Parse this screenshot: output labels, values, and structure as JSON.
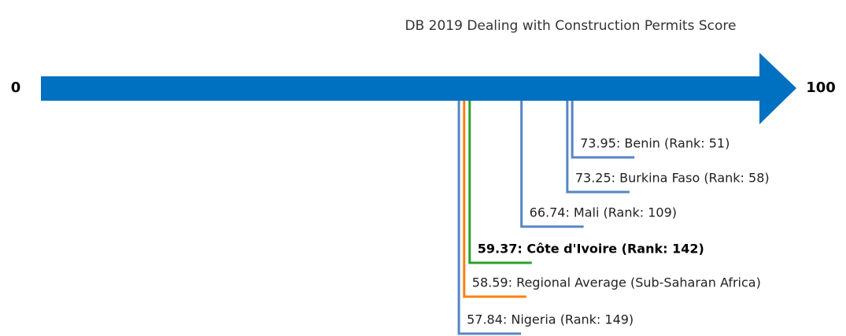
{
  "chart_data": {
    "type": "scale",
    "title": "DB 2019 Dealing with Construction Permits Score",
    "xlim": [
      0,
      100
    ],
    "xticks": [
      0,
      100
    ],
    "axis_color": "#0070c0",
    "values": [
      73.95,
      73.25,
      66.74,
      59.37,
      58.59,
      57.84
    ],
    "value_labels": [
      "73.95: Benin (Rank: 51)",
      "73.25: Burkina Faso (Rank: 58)",
      "66.74: Mali (Rank: 109)",
      "59.37: Côte d'Ivoire (Rank: 142)",
      "58.59: Regional Average (Sub-Saharan Africa)",
      "57.84: Nigeria (Rank: 149)"
    ],
    "colors": [
      "#5585c5",
      "#5585c5",
      "#5585c5",
      "#2ca02c",
      "#ff7f0e",
      "#5585c5"
    ],
    "bold": [
      false,
      false,
      false,
      true,
      false,
      false
    ]
  }
}
